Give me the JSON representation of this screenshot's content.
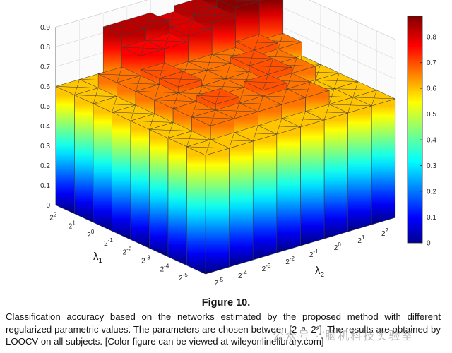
{
  "chart_data": {
    "type": "bar3d",
    "x_label": "λ",
    "x_label_sub": "1",
    "y_label": "λ",
    "y_label_sub": "2",
    "x_ticks": [
      {
        "base": "2",
        "exp": "-5"
      },
      {
        "base": "2",
        "exp": "-4"
      },
      {
        "base": "2",
        "exp": "-3"
      },
      {
        "base": "2",
        "exp": "-2"
      },
      {
        "base": "2",
        "exp": "-1"
      },
      {
        "base": "2",
        "exp": "0"
      },
      {
        "base": "2",
        "exp": "1"
      },
      {
        "base": "2",
        "exp": "2"
      }
    ],
    "y_ticks": [
      {
        "base": "2",
        "exp": "-5"
      },
      {
        "base": "2",
        "exp": "-4"
      },
      {
        "base": "2",
        "exp": "-3"
      },
      {
        "base": "2",
        "exp": "-2"
      },
      {
        "base": "2",
        "exp": "-1"
      },
      {
        "base": "2",
        "exp": "0"
      },
      {
        "base": "2",
        "exp": "1"
      },
      {
        "base": "2",
        "exp": "2"
      }
    ],
    "z_ticks": [
      "0",
      "0.1",
      "0.2",
      "0.3",
      "0.4",
      "0.5",
      "0.6",
      "0.7",
      "0.8",
      "0.9"
    ],
    "z_range": [
      0,
      0.9
    ],
    "colorbar_range": [
      0,
      0.88
    ],
    "colorbar_ticks": [
      "0",
      "0.1",
      "0.2",
      "0.3",
      "0.4",
      "0.5",
      "0.6",
      "0.7",
      "0.8"
    ],
    "colormap": "jet",
    "grid_note": "values[row][col]: row = λ1 index (0 = 2^-5 … 7 = 2^2), col = λ2 index (0 = 2^-5 … 7 = 2^2)",
    "values": [
      [
        0.6,
        0.6,
        0.6,
        0.6,
        0.6,
        0.6,
        0.6,
        0.6
      ],
      [
        0.6,
        0.67,
        0.67,
        0.67,
        0.67,
        0.67,
        0.6,
        0.6
      ],
      [
        0.6,
        0.67,
        0.7,
        0.67,
        0.7,
        0.67,
        0.6,
        0.6
      ],
      [
        0.6,
        0.67,
        0.67,
        0.67,
        0.67,
        0.7,
        0.67,
        0.6
      ],
      [
        0.6,
        0.67,
        0.7,
        0.67,
        0.67,
        0.7,
        0.67,
        0.6
      ],
      [
        0.6,
        0.67,
        0.7,
        0.67,
        0.67,
        0.67,
        0.7,
        0.67
      ],
      [
        0.6,
        0.67,
        0.77,
        0.77,
        0.8,
        0.83,
        0.87,
        0.87
      ],
      [
        0.6,
        0.6,
        0.83,
        0.83,
        0.8,
        0.83,
        0.87,
        0.87
      ]
    ]
  },
  "caption": {
    "title": "Figure 10.",
    "text": "Classification accuracy based on the networks estimated by the proposed method with different regularized parametric values. The parameters are chosen between [2⁻⁵, 2²]. The results are obtained by LOOCV on all subjects. [Color figure can be viewed at wileyonlinelibrary.com]"
  },
  "watermark": "公众号 · 脑机科技实验室"
}
